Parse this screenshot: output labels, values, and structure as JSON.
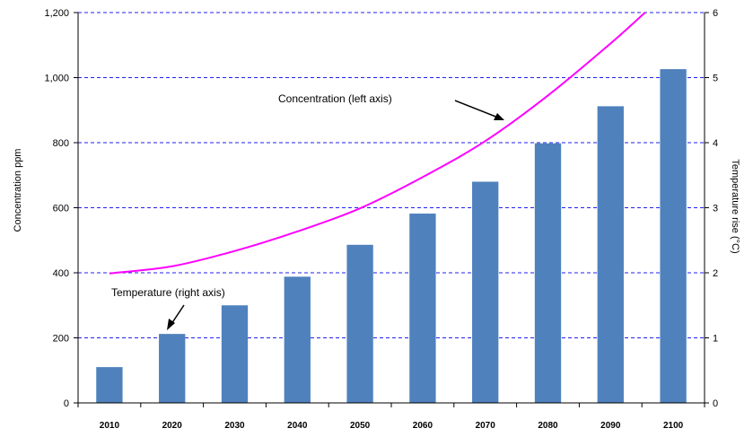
{
  "chart_data": {
    "type": "bar",
    "categories": [
      "2010",
      "2020",
      "2030",
      "2040",
      "2050",
      "2060",
      "2070",
      "2080",
      "2090",
      "2100"
    ],
    "series": [
      {
        "name": "Temperature (right axis)",
        "type": "bar",
        "axis": "right",
        "values": [
          0.55,
          1.06,
          1.5,
          1.94,
          2.43,
          2.91,
          3.4,
          3.99,
          4.56,
          5.13
        ],
        "color": "#4f81bd"
      },
      {
        "name": "Concentration (left axis)",
        "type": "line",
        "axis": "left",
        "x": [
          2010,
          2020,
          2030,
          2040,
          2050,
          2060,
          2070,
          2080,
          2090,
          2095.5
        ],
        "values": [
          398,
          420,
          467,
          527,
          598,
          694,
          805,
          945,
          1105,
          1200
        ],
        "color": "#ff00ff"
      }
    ],
    "left_axis": {
      "label": "Concentration ppm",
      "ylim": [
        0,
        1200
      ],
      "ticks": [
        "0",
        "200",
        "400",
        "600",
        "800",
        "1,000",
        "1,200"
      ]
    },
    "right_axis": {
      "label": "Temperature rise (°C)",
      "ylim": [
        0,
        6
      ],
      "ticks": [
        "0",
        "1",
        "2",
        "3",
        "4",
        "5",
        "6"
      ]
    },
    "grid": true,
    "legend": "none",
    "annotations": [
      {
        "text": "Concentration (left axis)",
        "target": "line"
      },
      {
        "text": "Temperature (right axis)",
        "target": "bars"
      }
    ]
  }
}
